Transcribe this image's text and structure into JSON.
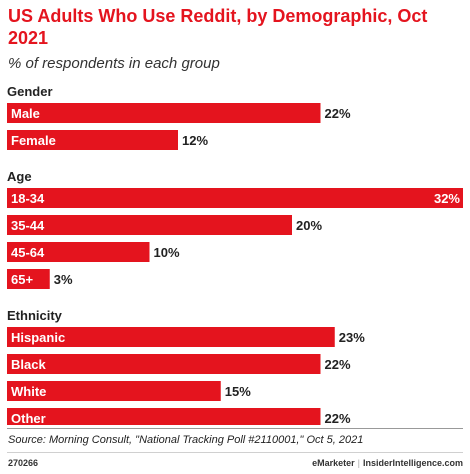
{
  "chart_data": {
    "type": "bar",
    "orientation": "horizontal",
    "title": "US Adults Who Use Reddit, by Demographic, Oct 2021",
    "subtitle": "% of respondents in each group",
    "unit": "%",
    "xlim": [
      0,
      32
    ],
    "bar_color": "#e4141e",
    "groups": [
      {
        "name": "Gender",
        "bars": [
          {
            "label": "Male",
            "value": 22
          },
          {
            "label": "Female",
            "value": 12
          }
        ]
      },
      {
        "name": "Age",
        "bars": [
          {
            "label": "18-34",
            "value": 32
          },
          {
            "label": "35-44",
            "value": 20
          },
          {
            "label": "45-64",
            "value": 10
          },
          {
            "label": "65+",
            "value": 3
          }
        ]
      },
      {
        "name": "Ethnicity",
        "bars": [
          {
            "label": "Hispanic",
            "value": 23
          },
          {
            "label": "Black",
            "value": 22
          },
          {
            "label": "White",
            "value": 15
          },
          {
            "label": "Other",
            "value": 22
          }
        ]
      }
    ]
  },
  "footer": {
    "source": "Source: Morning Consult, \"National Tracking Poll #2110001,\" Oct 5, 2021",
    "chart_id": "270266",
    "brand_left": "eMarketer",
    "separator": "|",
    "brand_right": "InsiderIntelligence.com"
  }
}
